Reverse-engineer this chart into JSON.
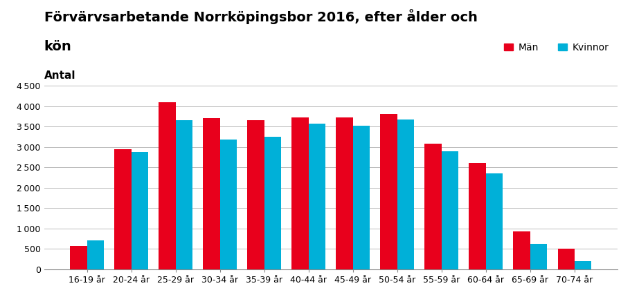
{
  "title_line1": "Förvärvsarbetande Norrköpingsbor 2016, efter ålder och",
  "title_line2": "kön",
  "ylabel": "Antal",
  "categories": [
    "16-19 år",
    "20-24 år",
    "25-29 år",
    "30-34 år",
    "35-39 år",
    "40-44 år",
    "45-49 år",
    "50-54 år",
    "55-59 år",
    "60-64 år",
    "65-69 år",
    "70-74 år"
  ],
  "man_values": [
    575,
    2950,
    4100,
    3700,
    3650,
    3725,
    3725,
    3800,
    3075,
    2600,
    925,
    500
  ],
  "kvinnor_values": [
    700,
    2875,
    3650,
    3175,
    3250,
    3575,
    3525,
    3675,
    2900,
    2350,
    625,
    200
  ],
  "man_color": "#E8001C",
  "kvinnor_color": "#00B0D8",
  "ylim": [
    0,
    4500
  ],
  "yticks": [
    0,
    500,
    1000,
    1500,
    2000,
    2500,
    3000,
    3500,
    4000,
    4500
  ],
  "legend_man": "Män",
  "legend_kvinnor": "Kvinnor",
  "background_color": "#ffffff",
  "grid_color": "#bbbbbb",
  "title_fontsize": 14,
  "ylabel_fontsize": 11,
  "tick_fontsize": 9,
  "legend_fontsize": 10,
  "bar_width": 0.38
}
